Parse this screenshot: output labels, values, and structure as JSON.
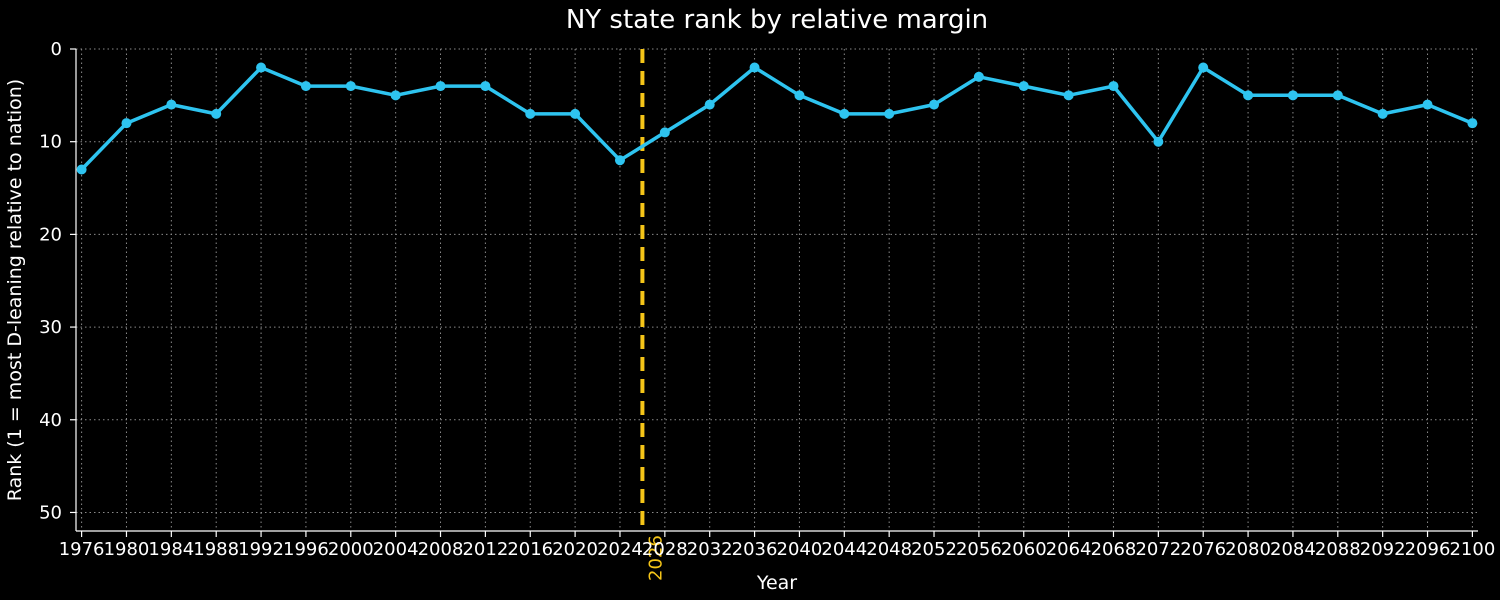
{
  "chart_data": {
    "type": "line",
    "title": "NY state rank by relative margin",
    "xlabel": "Year",
    "ylabel": "Rank (1 = most D-leaning relative to nation)",
    "ylim": [
      52,
      0
    ],
    "y_inverted": true,
    "yticks": [
      0,
      10,
      20,
      30,
      40,
      50
    ],
    "grid": true,
    "colors": {
      "background": "#000000",
      "series": "#2ec4f0",
      "reference": "#f5c518",
      "text": "#ffffff"
    },
    "x": [
      1976,
      1980,
      1984,
      1988,
      1992,
      1996,
      2000,
      2004,
      2008,
      2012,
      2016,
      2020,
      2024,
      2028,
      2032,
      2036,
      2040,
      2044,
      2048,
      2052,
      2056,
      2060,
      2064,
      2068,
      2072,
      2076,
      2080,
      2084,
      2088,
      2092,
      2096,
      2100
    ],
    "series": [
      {
        "values": [
          13,
          8,
          6,
          7,
          2,
          4,
          4,
          5,
          4,
          4,
          7,
          7,
          12,
          9,
          6,
          2,
          5,
          7,
          7,
          6,
          3,
          4,
          5,
          4,
          10,
          2,
          5,
          5,
          5,
          7,
          6,
          8
        ]
      }
    ],
    "reference_line": {
      "x": 2026,
      "label": "2026",
      "style": "dashed"
    }
  }
}
